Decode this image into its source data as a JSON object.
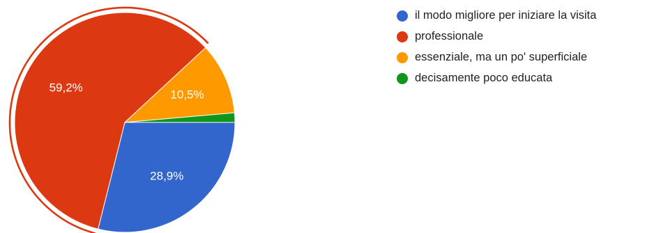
{
  "chart_data": {
    "type": "pie",
    "legend_position": "right",
    "highlighted_slice": 1,
    "slices": [
      {
        "label": "il modo migliore per iniziare la visita",
        "value": 28.9,
        "display": "28,9%",
        "color": "#3366cc"
      },
      {
        "label": "professionale",
        "value": 59.2,
        "display": "59,2%",
        "color": "#dc3912"
      },
      {
        "label": "essenziale, ma un po' superficiale",
        "value": 10.5,
        "display": "10,5%",
        "color": "#ff9900"
      },
      {
        "label": "decisamente poco educata",
        "value": 1.4,
        "display": "",
        "color": "#109618"
      }
    ]
  }
}
